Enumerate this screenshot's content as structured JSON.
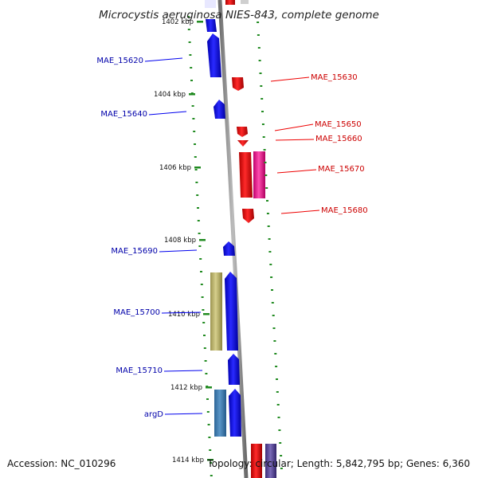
{
  "title": "Microcystis aeruginosa NIES-843, complete genome",
  "footer": {
    "accession": "Accession: NC_010296",
    "topology": "Topology: circular; Length: 5,842,795 bp; Genes: 6,360"
  },
  "colors": {
    "forward_gene": "#0000ee",
    "reverse_gene": "#ee0000",
    "forward_label": "#0000aa",
    "reverse_label": "#cc0000",
    "tick": "#228b22",
    "axis": "#888888"
  },
  "ticks": [
    {
      "label": "1402 kbp"
    },
    {
      "label": "1404 kbp"
    },
    {
      "label": "1406 kbp"
    },
    {
      "label": "1408 kbp"
    },
    {
      "label": "1410 kbp"
    },
    {
      "label": "1412 kbp"
    },
    {
      "label": "1414 kbp"
    }
  ],
  "genes_left": [
    {
      "label": "MAE_15620"
    },
    {
      "label": "MAE_15640"
    },
    {
      "label": "MAE_15690"
    },
    {
      "label": "MAE_15700"
    },
    {
      "label": "MAE_15710"
    },
    {
      "label": "argD"
    }
  ],
  "genes_right": [
    {
      "label": "MAE_15630"
    },
    {
      "label": "MAE_15650"
    },
    {
      "label": "MAE_15660"
    },
    {
      "label": "MAE_15670"
    },
    {
      "label": "MAE_15680"
    }
  ]
}
